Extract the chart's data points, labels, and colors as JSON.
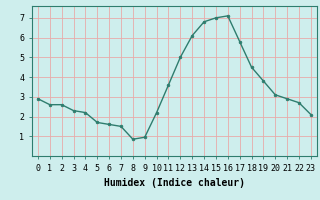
{
  "x": [
    0,
    1,
    2,
    3,
    4,
    5,
    6,
    7,
    8,
    9,
    10,
    11,
    12,
    13,
    14,
    15,
    16,
    17,
    18,
    19,
    20,
    21,
    22,
    23
  ],
  "y": [
    2.9,
    2.6,
    2.6,
    2.3,
    2.2,
    1.7,
    1.6,
    1.5,
    0.85,
    0.95,
    2.2,
    3.6,
    5.0,
    6.1,
    6.8,
    7.0,
    7.1,
    5.8,
    4.5,
    3.8,
    3.1,
    2.9,
    2.7,
    2.1
  ],
  "line_color": "#2e7d6e",
  "marker": "o",
  "marker_size": 2,
  "bg_color": "#ceeeed",
  "grid_color": "#e8aaaa",
  "xlabel": "Humidex (Indice chaleur)",
  "xlabel_fontsize": 7,
  "tick_fontsize": 6,
  "ylim": [
    0,
    7.6
  ],
  "xlim": [
    -0.5,
    23.5
  ],
  "yticks": [
    1,
    2,
    3,
    4,
    5,
    6,
    7
  ],
  "xticks": [
    0,
    1,
    2,
    3,
    4,
    5,
    6,
    7,
    8,
    9,
    10,
    11,
    12,
    13,
    14,
    15,
    16,
    17,
    18,
    19,
    20,
    21,
    22,
    23
  ],
  "linewidth": 1.0
}
